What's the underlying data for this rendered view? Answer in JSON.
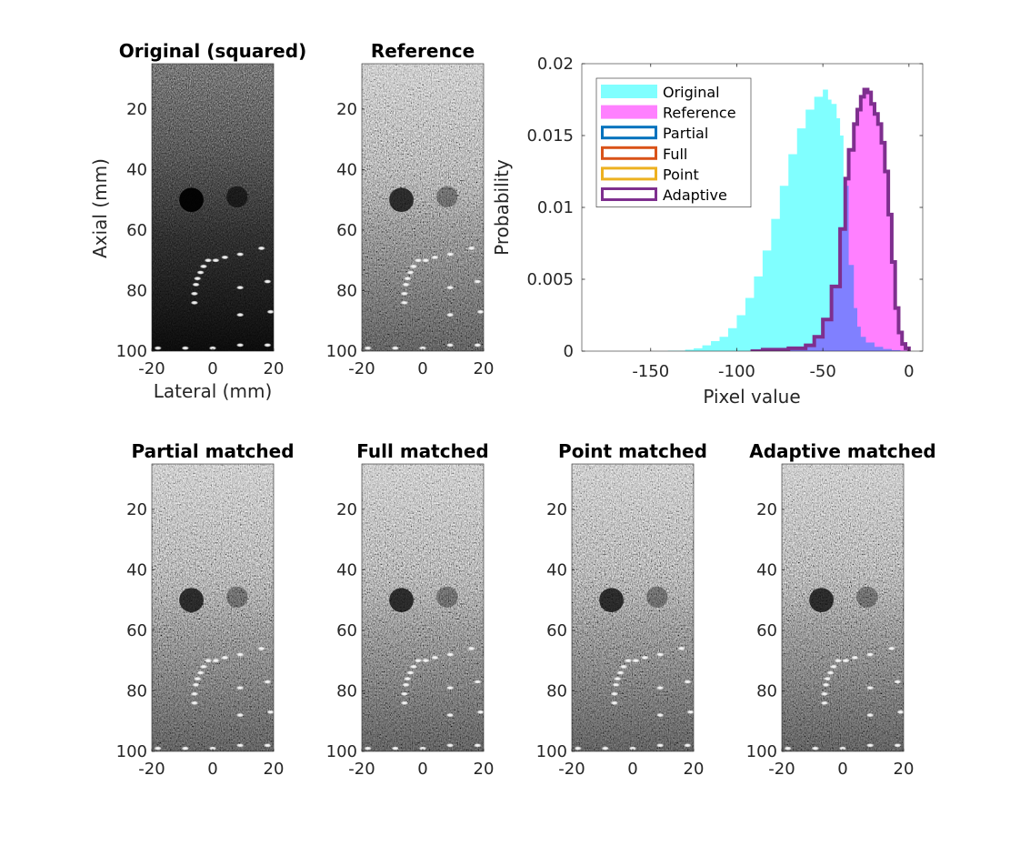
{
  "chart_data": [
    {
      "id": "original",
      "type": "image",
      "title": "Original (squared)",
      "xlabel": "Lateral (mm)",
      "ylabel": "Axial (mm)",
      "xlim": [
        -20,
        20
      ],
      "ylim": [
        5,
        100
      ],
      "xticks": [
        -20,
        0,
        20
      ],
      "yticks": [
        20,
        40,
        60,
        80,
        100
      ],
      "tone": "dark",
      "cysts": [
        {
          "x": -7,
          "y": 50,
          "r": 4
        },
        {
          "x": 8,
          "y": 49,
          "r": 3.5
        }
      ],
      "targets": [
        {
          "x": -1.5,
          "y": 70
        },
        {
          "x": -3,
          "y": 72
        },
        {
          "x": -4,
          "y": 74
        },
        {
          "x": -5,
          "y": 76
        },
        {
          "x": -5.5,
          "y": 78
        },
        {
          "x": -6,
          "y": 81
        },
        {
          "x": -6,
          "y": 84
        },
        {
          "x": 1,
          "y": 70
        },
        {
          "x": 4,
          "y": 69
        },
        {
          "x": 9,
          "y": 68
        },
        {
          "x": 16,
          "y": 66
        },
        {
          "x": 9,
          "y": 79
        },
        {
          "x": 18,
          "y": 77
        },
        {
          "x": 9,
          "y": 88
        },
        {
          "x": 19,
          "y": 87
        },
        {
          "x": -18,
          "y": 99
        },
        {
          "x": -9,
          "y": 99
        },
        {
          "x": 0,
          "y": 99
        },
        {
          "x": 9,
          "y": 98
        },
        {
          "x": 18,
          "y": 98
        }
      ]
    },
    {
      "id": "reference",
      "type": "image",
      "title": "Reference",
      "xlim": [
        -20,
        20
      ],
      "ylim": [
        5,
        100
      ],
      "xticks": [
        -20,
        0,
        20
      ],
      "yticks": [
        20,
        40,
        60,
        80,
        100
      ],
      "tone": "gray",
      "cysts": [
        {
          "x": -7,
          "y": 50,
          "r": 4
        },
        {
          "x": 8,
          "y": 49,
          "r": 3.5
        }
      ],
      "targets": [
        {
          "x": -1.5,
          "y": 70
        },
        {
          "x": -3,
          "y": 72
        },
        {
          "x": -4,
          "y": 74
        },
        {
          "x": -5,
          "y": 76
        },
        {
          "x": -5.5,
          "y": 78
        },
        {
          "x": -6,
          "y": 81
        },
        {
          "x": -6,
          "y": 84
        },
        {
          "x": 1,
          "y": 70
        },
        {
          "x": 4,
          "y": 69
        },
        {
          "x": 9,
          "y": 68
        },
        {
          "x": 16,
          "y": 66
        },
        {
          "x": 9,
          "y": 79
        },
        {
          "x": 18,
          "y": 77
        },
        {
          "x": 9,
          "y": 88
        },
        {
          "x": 19,
          "y": 87
        },
        {
          "x": -18,
          "y": 99
        },
        {
          "x": -9,
          "y": 99
        },
        {
          "x": 0,
          "y": 99
        },
        {
          "x": 9,
          "y": 98
        },
        {
          "x": 18,
          "y": 98
        }
      ]
    },
    {
      "id": "histogram",
      "type": "histogram",
      "xlabel": "Pixel value",
      "ylabel": "Probability",
      "xlim": [
        -190,
        8
      ],
      "ylim": [
        0,
        0.02
      ],
      "xticks": [
        -150,
        -100,
        -50,
        0
      ],
      "yticks": [
        0,
        0.005,
        0.01,
        0.015,
        0.02
      ],
      "ytick_labels": [
        "0",
        "0.005",
        "0.01",
        "0.015",
        "0.02"
      ],
      "series": [
        {
          "name": "Original",
          "style": "fill",
          "color": "#80ffff",
          "x": [
            -150,
            -140,
            -130,
            -125,
            -120,
            -115,
            -110,
            -105,
            -100,
            -95,
            -90,
            -85,
            -80,
            -75,
            -70,
            -65,
            -60,
            -55,
            -50,
            -47,
            -45,
            -42,
            -40,
            -38,
            -35,
            -32,
            -30,
            -28,
            -25,
            -20,
            -15,
            -10,
            -5,
            0
          ],
          "y": [
            0,
            3e-05,
            0.0001,
            0.0002,
            0.0004,
            0.0007,
            0.001,
            0.0016,
            0.0025,
            0.0037,
            0.0052,
            0.007,
            0.0092,
            0.0115,
            0.0137,
            0.0155,
            0.0168,
            0.0177,
            0.0182,
            0.0175,
            0.0172,
            0.0162,
            0.015,
            0.0115,
            0.006,
            0.003,
            0.0017,
            0.001,
            0.0006,
            0.0003,
            0.00015,
            7e-05,
            2e-05,
            0
          ]
        },
        {
          "name": "Reference",
          "style": "fill",
          "color": "#ff80ff",
          "x": [
            -92,
            -85,
            -80,
            -75,
            -70,
            -65,
            -60,
            -55,
            -50,
            -45,
            -40,
            -37,
            -35,
            -32,
            -30,
            -28,
            -26,
            -24,
            -22,
            -20,
            -18,
            -16,
            -14,
            -12,
            -10,
            -8,
            -6,
            -4,
            -2,
            0
          ],
          "y": [
            0,
            0.0001,
            0.0001,
            0.0001,
            0.0002,
            0.0002,
            0.0004,
            0.001,
            0.0022,
            0.0045,
            0.0085,
            0.012,
            0.014,
            0.0158,
            0.0168,
            0.0177,
            0.0182,
            0.018,
            0.0172,
            0.0165,
            0.0158,
            0.0145,
            0.0125,
            0.0095,
            0.0062,
            0.003,
            0.0013,
            0.0005,
            0.0002,
            0
          ]
        },
        {
          "name": "Partial",
          "style": "outline",
          "color": "#0072bd",
          "x": [],
          "y": []
        },
        {
          "name": "Full",
          "style": "outline",
          "color": "#d95319",
          "x": [],
          "y": []
        },
        {
          "name": "Point",
          "style": "outline",
          "color": "#edb120",
          "x": [
            -92,
            -91
          ],
          "y": [
            0,
            0
          ]
        },
        {
          "name": "Adaptive",
          "style": "outline",
          "color": "#7e2f8e",
          "x": [
            -92,
            -85,
            -80,
            -75,
            -70,
            -65,
            -60,
            -55,
            -50,
            -45,
            -40,
            -37,
            -35,
            -32,
            -30,
            -28,
            -26,
            -24,
            -22,
            -20,
            -18,
            -16,
            -14,
            -12,
            -10,
            -8,
            -6,
            -4,
            -2,
            0
          ],
          "y": [
            0,
            0.0001,
            0.0001,
            0.0001,
            0.0002,
            0.0002,
            0.0004,
            0.001,
            0.0022,
            0.0045,
            0.0085,
            0.012,
            0.014,
            0.0158,
            0.0168,
            0.0177,
            0.0182,
            0.018,
            0.0172,
            0.0165,
            0.0158,
            0.0145,
            0.0125,
            0.0095,
            0.0062,
            0.003,
            0.0013,
            0.0005,
            0.0002,
            0
          ]
        }
      ]
    },
    {
      "id": "partial",
      "type": "image",
      "title": "Partial matched",
      "xlim": [
        -20,
        20
      ],
      "ylim": [
        5,
        100
      ],
      "xticks": [
        -20,
        0,
        20
      ],
      "yticks": [
        20,
        40,
        60,
        80,
        100
      ],
      "tone": "gray",
      "cysts": [
        {
          "x": -7,
          "y": 50,
          "r": 4
        },
        {
          "x": 8,
          "y": 49,
          "r": 3.5
        }
      ],
      "targets": [
        {
          "x": -1.5,
          "y": 70
        },
        {
          "x": -3,
          "y": 72
        },
        {
          "x": -4,
          "y": 74
        },
        {
          "x": -5,
          "y": 76
        },
        {
          "x": -5.5,
          "y": 78
        },
        {
          "x": -6,
          "y": 81
        },
        {
          "x": -6,
          "y": 84
        },
        {
          "x": 1,
          "y": 70
        },
        {
          "x": 4,
          "y": 69
        },
        {
          "x": 9,
          "y": 68
        },
        {
          "x": 16,
          "y": 66
        },
        {
          "x": 9,
          "y": 79
        },
        {
          "x": 18,
          "y": 77
        },
        {
          "x": 9,
          "y": 88
        },
        {
          "x": 19,
          "y": 87
        },
        {
          "x": -18,
          "y": 99
        },
        {
          "x": -9,
          "y": 99
        },
        {
          "x": 0,
          "y": 99
        },
        {
          "x": 9,
          "y": 98
        },
        {
          "x": 18,
          "y": 98
        }
      ]
    },
    {
      "id": "full",
      "type": "image",
      "title": "Full matched",
      "xlim": [
        -20,
        20
      ],
      "ylim": [
        5,
        100
      ],
      "xticks": [
        -20,
        0,
        20
      ],
      "yticks": [
        20,
        40,
        60,
        80,
        100
      ],
      "tone": "gray",
      "cysts": [
        {
          "x": -7,
          "y": 50,
          "r": 4
        },
        {
          "x": 8,
          "y": 49,
          "r": 3.5
        }
      ],
      "targets": [
        {
          "x": -1.5,
          "y": 70
        },
        {
          "x": -3,
          "y": 72
        },
        {
          "x": -4,
          "y": 74
        },
        {
          "x": -5,
          "y": 76
        },
        {
          "x": -5.5,
          "y": 78
        },
        {
          "x": -6,
          "y": 81
        },
        {
          "x": -6,
          "y": 84
        },
        {
          "x": 1,
          "y": 70
        },
        {
          "x": 4,
          "y": 69
        },
        {
          "x": 9,
          "y": 68
        },
        {
          "x": 16,
          "y": 66
        },
        {
          "x": 9,
          "y": 79
        },
        {
          "x": 18,
          "y": 77
        },
        {
          "x": 9,
          "y": 88
        },
        {
          "x": 19,
          "y": 87
        },
        {
          "x": -18,
          "y": 99
        },
        {
          "x": -9,
          "y": 99
        },
        {
          "x": 0,
          "y": 99
        },
        {
          "x": 9,
          "y": 98
        },
        {
          "x": 18,
          "y": 98
        }
      ]
    },
    {
      "id": "point",
      "type": "image",
      "title": "Point matched",
      "xlim": [
        -20,
        20
      ],
      "ylim": [
        5,
        100
      ],
      "xticks": [
        -20,
        0,
        20
      ],
      "yticks": [
        20,
        40,
        60,
        80,
        100
      ],
      "tone": "gray",
      "cysts": [
        {
          "x": -7,
          "y": 50,
          "r": 4
        },
        {
          "x": 8,
          "y": 49,
          "r": 3.5
        }
      ],
      "targets": [
        {
          "x": -1.5,
          "y": 70
        },
        {
          "x": -3,
          "y": 72
        },
        {
          "x": -4,
          "y": 74
        },
        {
          "x": -5,
          "y": 76
        },
        {
          "x": -5.5,
          "y": 78
        },
        {
          "x": -6,
          "y": 81
        },
        {
          "x": -6,
          "y": 84
        },
        {
          "x": 1,
          "y": 70
        },
        {
          "x": 4,
          "y": 69
        },
        {
          "x": 9,
          "y": 68
        },
        {
          "x": 16,
          "y": 66
        },
        {
          "x": 9,
          "y": 79
        },
        {
          "x": 18,
          "y": 77
        },
        {
          "x": 9,
          "y": 88
        },
        {
          "x": 19,
          "y": 87
        },
        {
          "x": -18,
          "y": 99
        },
        {
          "x": -9,
          "y": 99
        },
        {
          "x": 0,
          "y": 99
        },
        {
          "x": 9,
          "y": 98
        },
        {
          "x": 18,
          "y": 98
        }
      ]
    },
    {
      "id": "adaptive",
      "type": "image",
      "title": "Adaptive matched",
      "xlim": [
        -20,
        20
      ],
      "ylim": [
        5,
        100
      ],
      "xticks": [
        -20,
        0,
        20
      ],
      "yticks": [
        20,
        40,
        60,
        80,
        100
      ],
      "tone": "gray",
      "cysts": [
        {
          "x": -7,
          "y": 50,
          "r": 4
        },
        {
          "x": 8,
          "y": 49,
          "r": 3.5
        }
      ],
      "targets": [
        {
          "x": -1.5,
          "y": 70
        },
        {
          "x": -3,
          "y": 72
        },
        {
          "x": -4,
          "y": 74
        },
        {
          "x": -5,
          "y": 76
        },
        {
          "x": -5.5,
          "y": 78
        },
        {
          "x": -6,
          "y": 81
        },
        {
          "x": -6,
          "y": 84
        },
        {
          "x": 1,
          "y": 70
        },
        {
          "x": 4,
          "y": 69
        },
        {
          "x": 9,
          "y": 68
        },
        {
          "x": 16,
          "y": 66
        },
        {
          "x": 9,
          "y": 79
        },
        {
          "x": 18,
          "y": 77
        },
        {
          "x": 9,
          "y": 88
        },
        {
          "x": 19,
          "y": 87
        },
        {
          "x": -18,
          "y": 99
        },
        {
          "x": -9,
          "y": 99
        },
        {
          "x": 0,
          "y": 99
        },
        {
          "x": 9,
          "y": 98
        },
        {
          "x": 18,
          "y": 98
        }
      ]
    }
  ]
}
